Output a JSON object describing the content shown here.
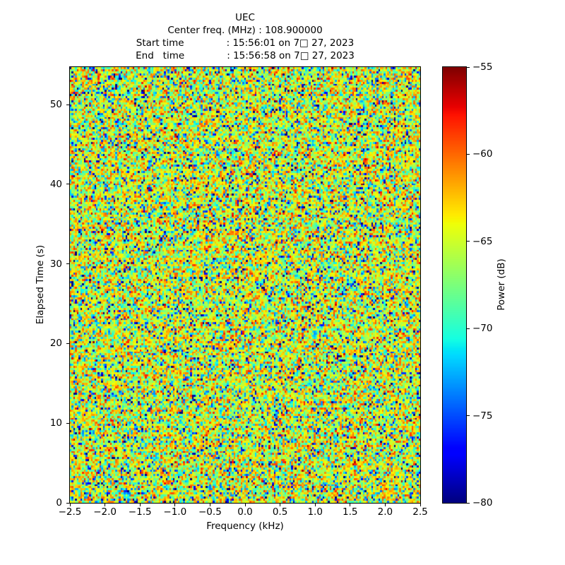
{
  "chart_data": {
    "type": "heatmap",
    "title": "UEC",
    "title_block": [
      "UEC",
      "Center freq. (MHz) : 108.900000",
      "Start time              : 15:56:01 on 7□ 27, 2023",
      "End   time              : 15:56:58 on 7□ 27, 2023"
    ],
    "center_freq_mhz": "108.900000",
    "start_time": "15:56:01 on 7□ 27, 2023",
    "end_time": "15:56:58 on 7□ 27, 2023",
    "xlabel": "Frequency (kHz)",
    "ylabel": "Elapsed Time (s)",
    "xlim": [
      -2.5,
      2.5
    ],
    "ylim": [
      0,
      54.7
    ],
    "x_ticks": [
      -2.5,
      -2.0,
      -1.5,
      -1.0,
      -0.5,
      0.0,
      0.5,
      1.0,
      1.5,
      2.0,
      2.5
    ],
    "x_tick_labels": [
      "−2.5",
      "−2.0",
      "−1.5",
      "−1.0",
      "−0.5",
      "0.0",
      "0.5",
      "1.0",
      "1.5",
      "2.0",
      "2.5"
    ],
    "y_ticks": [
      0,
      10,
      20,
      30,
      40,
      50
    ],
    "y_tick_labels": [
      "0",
      "10",
      "20",
      "30",
      "40",
      "50"
    ],
    "grid": false,
    "colorbar": {
      "label": "Power (dB)",
      "vmin": -80,
      "vmax": -55,
      "ticks": [
        -55,
        -60,
        -65,
        -70,
        -75,
        -80
      ],
      "tick_labels": [
        "−55",
        "−60",
        "−65",
        "−70",
        "−75",
        "−80"
      ],
      "colormap": "jet",
      "colormap_stops_top_to_bottom": [
        "#800000",
        "#ff0000",
        "#ffff00",
        "#7dff7d",
        "#00dcff",
        "#0000ff",
        "#000080"
      ]
    },
    "data_summary": {
      "description": "Featureless wideband noise spectrogram: power values concentrated near −66 dB (green/yellow-green), frequent cyan (≈−70 dB) and yellow/orange (≈−63 to −60 dB) cells, sparse dark-blue outliers near −80 dB and rare dark-red outliers near −55 dB. No visible signal structure.",
      "grid_cols": 201,
      "grid_rows": 210,
      "noise_model": {
        "distribution": "dB of exponentially distributed power (Gumbel-like, left-skewed)",
        "mean_dB": -66.3,
        "std_dB": 5.1,
        "seed": 12345
      }
    }
  }
}
